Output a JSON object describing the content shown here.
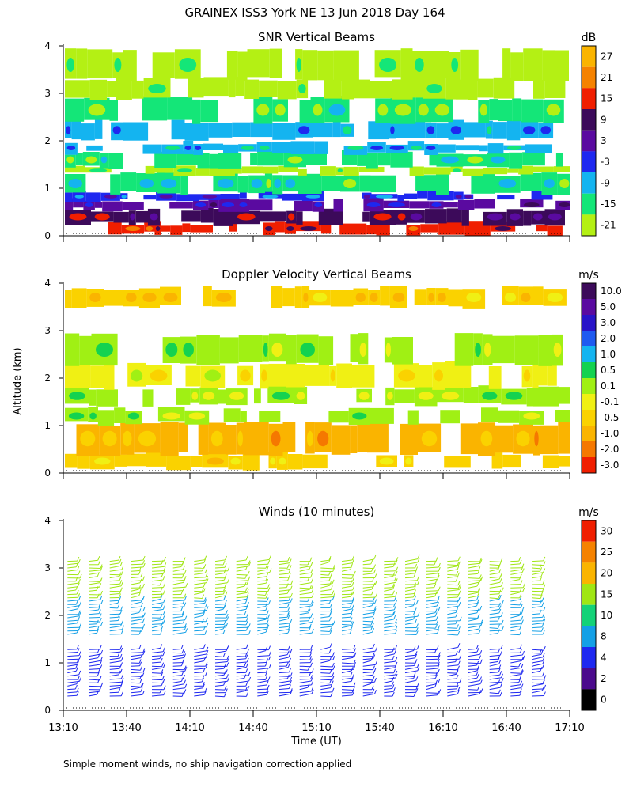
{
  "header": {
    "title": "GRAINEX ISS3 York NE  13 Jun 2018 Day 164",
    "ylabel": "Altitude (km)",
    "footnote": "Simple moment winds, no ship navigation correction applied"
  },
  "chart_data": [
    {
      "type": "heatmap",
      "title": "SNR Vertical Beams",
      "ylabel": "Altitude (km)",
      "ylim": [
        0,
        4
      ],
      "yticks": [
        "0",
        "1",
        "2",
        "3",
        "4"
      ],
      "xlim": [
        "13:10",
        "17:10"
      ],
      "colorbar": {
        "unit": "dB",
        "labels": [
          "27",
          "21",
          "15",
          "9",
          "3",
          "-3",
          "-9",
          "-15",
          "-21"
        ],
        "colors": [
          "#fab400",
          "#f58200",
          "#f01e00",
          "#3c0a5a",
          "#5a0aa0",
          "#1e28f0",
          "#14b4f0",
          "#14e678",
          "#b4f014"
        ]
      },
      "layers": [
        {
          "y0": 0.05,
          "y1": 0.25,
          "level": "15"
        },
        {
          "y0": 0.25,
          "y1": 0.55,
          "level": "9"
        },
        {
          "y0": 0.55,
          "y1": 0.75,
          "level": "3"
        },
        {
          "y0": 0.75,
          "y1": 0.9,
          "level": "-3"
        },
        {
          "y0": 0.9,
          "y1": 1.3,
          "level": "-15"
        },
        {
          "y0": 1.3,
          "y1": 1.45,
          "level": "-21"
        },
        {
          "y0": 1.45,
          "y1": 1.75,
          "level": "-15"
        },
        {
          "y0": 1.75,
          "y1": 1.95,
          "level": "-9"
        },
        {
          "y0": 2.05,
          "y1": 2.4,
          "level": "-9"
        },
        {
          "y0": 2.4,
          "y1": 2.9,
          "level": "-15"
        },
        {
          "y0": 2.9,
          "y1": 3.3,
          "level": "-21"
        },
        {
          "y0": 3.3,
          "y1": 3.9,
          "level": "-21"
        }
      ]
    },
    {
      "type": "heatmap",
      "title": "Doppler Velocity Vertical Beams",
      "ylim": [
        0,
        4
      ],
      "yticks": [
        "0",
        "1",
        "2",
        "3",
        "4"
      ],
      "xlim": [
        "13:10",
        "17:10"
      ],
      "colorbar": {
        "unit": "m/s",
        "labels": [
          "10.0",
          "5.0",
          "3.0",
          "2.0",
          "1.0",
          "0.5",
          "0.1",
          "-0.1",
          "-0.5",
          "-1.0",
          "-2.0",
          "-3.0"
        ],
        "colors": [
          "#3c0a5a",
          "#5a0aa0",
          "#2814c8",
          "#1e5af0",
          "#14b4f0",
          "#14d250",
          "#a0f014",
          "#f0f014",
          "#fad200",
          "#fab400",
          "#f57800",
          "#f01e00"
        ]
      },
      "layers": [
        {
          "y0": 0.1,
          "y1": 0.4,
          "level": "-0.5"
        },
        {
          "y0": 0.4,
          "y1": 1.05,
          "level": "-1.0"
        },
        {
          "y0": 1.05,
          "y1": 1.35,
          "level": "0.1"
        },
        {
          "y0": 1.45,
          "y1": 1.8,
          "level": "0.1"
        },
        {
          "y0": 1.8,
          "y1": 2.3,
          "level": "-0.1"
        },
        {
          "y0": 2.3,
          "y1": 2.9,
          "level": "0.1"
        },
        {
          "y0": 3.5,
          "y1": 3.9,
          "level": "-0.5"
        }
      ]
    },
    {
      "type": "scatter",
      "title": "Winds (10 minutes)",
      "ylim": [
        0,
        4
      ],
      "yticks": [
        "0",
        "1",
        "2",
        "3",
        "4"
      ],
      "xlabel": "Time (UT)",
      "xticks": [
        "13:10",
        "13:40",
        "14:10",
        "14:40",
        "15:10",
        "15:40",
        "16:10",
        "16:40",
        "17:10"
      ],
      "colorbar": {
        "unit": "m/s",
        "labels": [
          "30",
          "25",
          "20",
          "15",
          "10",
          "8",
          "4",
          "2",
          "0"
        ],
        "colors": [
          "#f01e00",
          "#f58200",
          "#fab400",
          "#a0e614",
          "#14d278",
          "#14a0e6",
          "#1e28f0",
          "#4b0a8c",
          "#000000"
        ]
      },
      "profiles": {
        "start_min": 0,
        "step_min": 10,
        "count": 23,
        "lower_range_km": [
          0.3,
          1.35
        ],
        "upper_range_km": [
          1.6,
          3.2
        ],
        "lower_level": "4",
        "upper_level": "15"
      }
    }
  ]
}
